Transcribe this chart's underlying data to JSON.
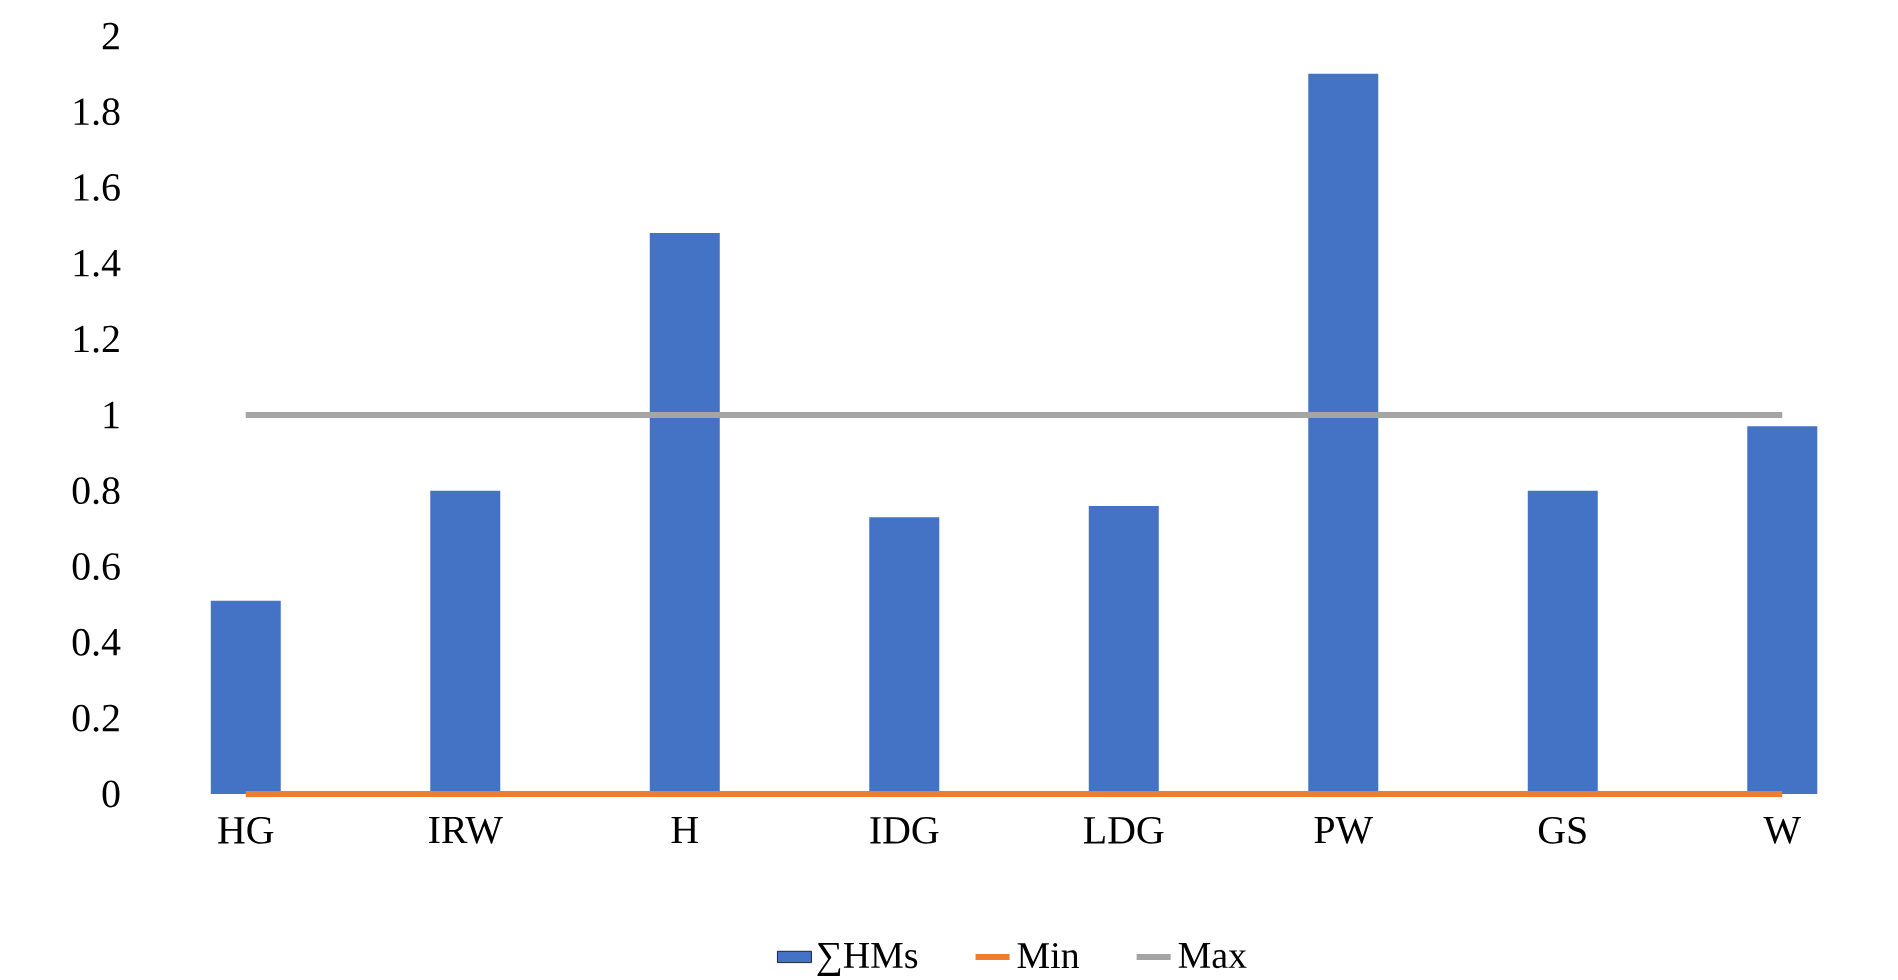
{
  "chart_data": {
    "type": "bar",
    "categories": [
      "HG",
      "IRW",
      "H",
      "IDG",
      "LDG",
      "PW",
      "GS",
      "W"
    ],
    "series": [
      {
        "name": "∑HMs",
        "color": "#4472c4",
        "values": [
          0.51,
          0.8,
          1.48,
          0.73,
          0.76,
          1.9,
          0.8,
          0.97
        ]
      },
      {
        "name": "Min",
        "type": "line",
        "color": "#ed7d31",
        "values": [
          0,
          0,
          0,
          0,
          0,
          0,
          0,
          0
        ]
      },
      {
        "name": "Max",
        "type": "line",
        "color": "#a5a5a5",
        "values": [
          1,
          1,
          1,
          1,
          1,
          1,
          1,
          1
        ]
      }
    ],
    "ylim": [
      0,
      2
    ],
    "yticks": [
      0,
      0.2,
      0.4,
      0.6,
      0.8,
      1,
      1.2,
      1.4,
      1.6,
      1.8,
      2
    ],
    "legend": "bottom",
    "grid": false
  }
}
